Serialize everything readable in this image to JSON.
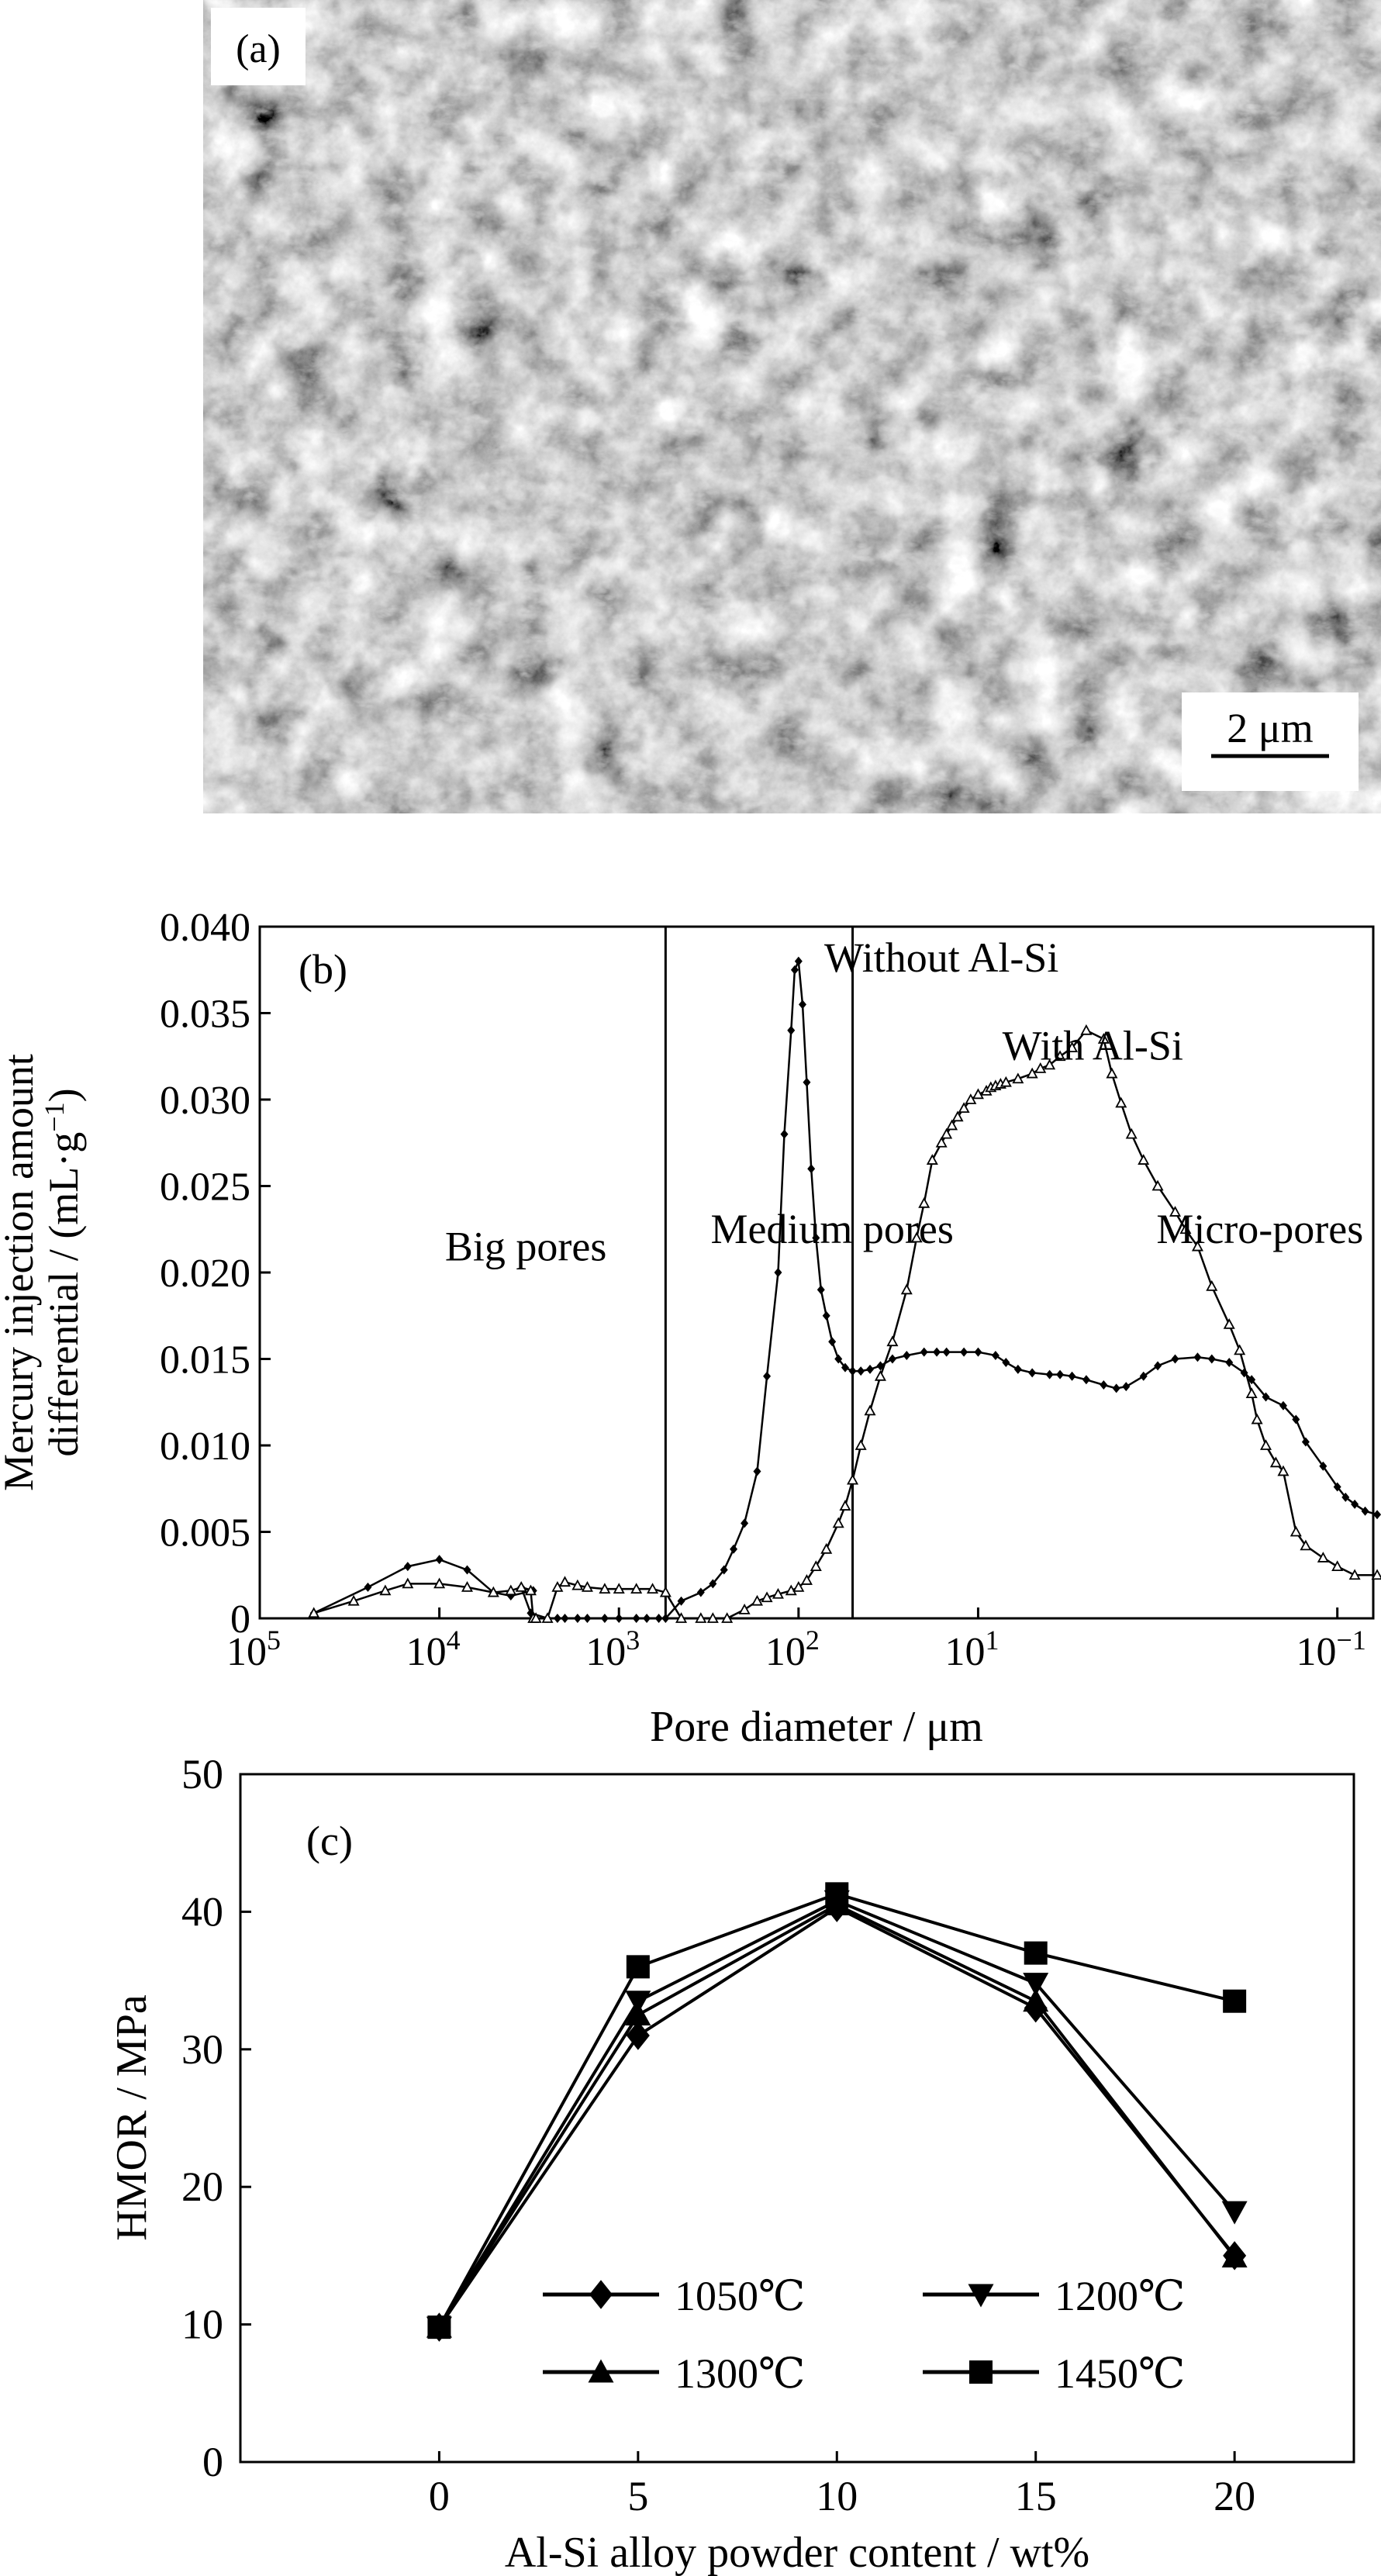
{
  "panel_a": {
    "label": "(a)",
    "scale_bar": "2 μm"
  },
  "chart_data": [
    {
      "type": "line",
      "panel_label": "(b)",
      "xlabel": "Pore diameter / μm",
      "ylabel_line1": "Mercury injection amount",
      "ylabel_line2": "differential / (mL·g⁻¹)",
      "x_scale": "log",
      "x_reversed": true,
      "xlim": [
        100000,
        0.0631
      ],
      "ylim": [
        0,
        0.04
      ],
      "x_ticks": [
        {
          "value": 100000,
          "base": "10",
          "exp": "5"
        },
        {
          "value": 10000,
          "base": "10",
          "exp": "4"
        },
        {
          "value": 1000,
          "base": "10",
          "exp": "3"
        },
        {
          "value": 100,
          "base": "10",
          "exp": "2"
        },
        {
          "value": 10,
          "base": "10",
          "exp": "1"
        },
        {
          "value": 0.1,
          "base": "10",
          "exp": "−1"
        }
      ],
      "y_ticks": [
        {
          "value": 0,
          "label": "0"
        },
        {
          "value": 0.005,
          "label": "0.005"
        },
        {
          "value": 0.01,
          "label": "0.010"
        },
        {
          "value": 0.015,
          "label": "0.015"
        },
        {
          "value": 0.02,
          "label": "0.020"
        },
        {
          "value": 0.025,
          "label": "0.025"
        },
        {
          "value": 0.03,
          "label": "0.030"
        },
        {
          "value": 0.035,
          "label": "0.035"
        },
        {
          "value": 0.04,
          "label": "0.040"
        }
      ],
      "divider_lines": [
        550,
        50
      ],
      "annotations": [
        {
          "text": "Big pores",
          "x": 3300,
          "y": 0.0207
        },
        {
          "text": "Medium pores",
          "x": 65,
          "y": 0.0217
        },
        {
          "text": "Micro-pores",
          "x": 0.27,
          "y": 0.0217
        },
        {
          "text": "Without Al-Si",
          "x": 16,
          "y": 0.0374
        },
        {
          "text": "With Al-Si",
          "x": 2.3,
          "y": 0.0323
        }
      ],
      "series": [
        {
          "name": "Without Al-Si",
          "marker": "filled-diamond",
          "x": [
            50000,
            25000,
            15000,
            10000,
            7000,
            5000,
            4000,
            3000,
            3500,
            3100,
            2500,
            2200,
            2000,
            1700,
            1500,
            1200,
            1000,
            800,
            700,
            600,
            550,
            450,
            350,
            300,
            260,
            230,
            200,
            170,
            150,
            130,
            120,
            110,
            105,
            100,
            95,
            90,
            85,
            80,
            75,
            70,
            65,
            60,
            55,
            50,
            45,
            40,
            35,
            30,
            25,
            20,
            17,
            15,
            12,
            10,
            8,
            7,
            6,
            5,
            4,
            3.5,
            3,
            2.5,
            2,
            1.7,
            1.5,
            1.2,
            1,
            0.8,
            0.6,
            0.5,
            0.4,
            0.33,
            0.3,
            0.25,
            0.2,
            0.17,
            0.15,
            0.12,
            0.1,
            0.09,
            0.08,
            0.07,
            0.06
          ],
          "y": [
            0.0003,
            0.0018,
            0.003,
            0.0034,
            0.0028,
            0.0015,
            0.0013,
            0.0016,
            0.0018,
            0.0003,
            0.0,
            0.0,
            0.0,
            0.0,
            0.0,
            0.0,
            0.0,
            0.0,
            0.0,
            0.0,
            0.0,
            0.001,
            0.0015,
            0.002,
            0.0028,
            0.004,
            0.0055,
            0.0085,
            0.014,
            0.02,
            0.028,
            0.034,
            0.0375,
            0.038,
            0.0355,
            0.031,
            0.026,
            0.022,
            0.019,
            0.0175,
            0.016,
            0.015,
            0.0145,
            0.0143,
            0.0143,
            0.0144,
            0.0146,
            0.015,
            0.0152,
            0.0154,
            0.0154,
            0.0154,
            0.0154,
            0.0154,
            0.0152,
            0.0148,
            0.0144,
            0.0142,
            0.0141,
            0.0141,
            0.014,
            0.0138,
            0.0135,
            0.0133,
            0.0134,
            0.014,
            0.0146,
            0.015,
            0.0151,
            0.015,
            0.0148,
            0.0142,
            0.0138,
            0.0128,
            0.0123,
            0.0115,
            0.0102,
            0.0088,
            0.0076,
            0.007,
            0.0066,
            0.0062,
            0.006
          ]
        },
        {
          "name": "With Al-Si",
          "marker": "open-triangle",
          "x": [
            50000,
            30000,
            20000,
            15000,
            10000,
            7000,
            5000,
            4000,
            3500,
            3100,
            3000,
            2900,
            2500,
            2200,
            2000,
            1700,
            1500,
            1200,
            1000,
            800,
            650,
            550,
            450,
            350,
            300,
            250,
            200,
            170,
            150,
            130,
            110,
            100,
            90,
            80,
            70,
            60,
            55,
            50,
            45,
            40,
            35,
            30,
            25,
            22,
            20,
            18,
            16,
            15,
            14,
            13,
            12,
            11,
            10,
            9,
            8.5,
            8,
            7.5,
            7,
            6,
            5,
            4.5,
            4,
            3.5,
            3,
            2.5,
            2,
            1.8,
            1.6,
            1.4,
            1.2,
            1,
            0.8,
            0.7,
            0.6,
            0.5,
            0.4,
            0.35,
            0.3,
            0.28,
            0.25,
            0.22,
            0.2,
            0.17,
            0.15,
            0.12,
            0.1,
            0.08,
            0.06
          ],
          "y": [
            0.0003,
            0.001,
            0.0016,
            0.002,
            0.002,
            0.0018,
            0.0015,
            0.0016,
            0.0018,
            0.0016,
            0.0,
            0.0,
            0.0,
            0.0018,
            0.0021,
            0.0019,
            0.0018,
            0.0017,
            0.0017,
            0.0017,
            0.0017,
            0.0015,
            0.0,
            0.0,
            0.0,
            0.0,
            0.0005,
            0.001,
            0.0012,
            0.0014,
            0.0016,
            0.0018,
            0.0022,
            0.003,
            0.004,
            0.0055,
            0.0065,
            0.008,
            0.01,
            0.012,
            0.014,
            0.016,
            0.019,
            0.022,
            0.024,
            0.0265,
            0.0275,
            0.028,
            0.0285,
            0.029,
            0.0295,
            0.03,
            0.0303,
            0.0305,
            0.0307,
            0.0308,
            0.0309,
            0.031,
            0.0312,
            0.0315,
            0.0318,
            0.032,
            0.0325,
            0.033,
            0.034,
            0.0335,
            0.0315,
            0.0298,
            0.028,
            0.0265,
            0.025,
            0.0235,
            0.0225,
            0.0215,
            0.0192,
            0.017,
            0.0155,
            0.013,
            0.0115,
            0.01,
            0.009,
            0.0085,
            0.005,
            0.0042,
            0.0035,
            0.003,
            0.0025,
            0.0025
          ]
        }
      ]
    },
    {
      "type": "line",
      "panel_label": "(c)",
      "xlabel": "Al-Si alloy powder content / wt%",
      "ylabel": "HMOR / MPa",
      "xlim": [
        -5,
        23
      ],
      "ylim": [
        0,
        50
      ],
      "x": [
        0,
        5,
        10,
        15,
        20
      ],
      "x_ticks": [
        {
          "value": 0,
          "label": "0"
        },
        {
          "value": 5,
          "label": "5"
        },
        {
          "value": 10,
          "label": "10"
        },
        {
          "value": 15,
          "label": "15"
        },
        {
          "value": 20,
          "label": "20"
        }
      ],
      "y_ticks": [
        {
          "value": 0,
          "label": "0"
        },
        {
          "value": 10,
          "label": "10"
        },
        {
          "value": 20,
          "label": "20"
        },
        {
          "value": 30,
          "label": "30"
        },
        {
          "value": 40,
          "label": "40"
        },
        {
          "value": 50,
          "label": "50"
        }
      ],
      "legend_position": "bottom-center",
      "series": [
        {
          "name": "1050℃",
          "marker": "diamond",
          "values": [
            9.8,
            31.0,
            40.3,
            33.0,
            15.0
          ]
        },
        {
          "name": "1200℃",
          "marker": "triangle-down",
          "values": [
            9.8,
            33.5,
            40.8,
            34.8,
            18.2
          ]
        },
        {
          "name": "1300℃",
          "marker": "triangle-up",
          "values": [
            9.8,
            32.5,
            40.5,
            33.5,
            14.9
          ]
        },
        {
          "name": "1450℃",
          "marker": "square",
          "values": [
            9.8,
            36.0,
            41.3,
            37.0,
            33.5
          ]
        }
      ]
    }
  ]
}
